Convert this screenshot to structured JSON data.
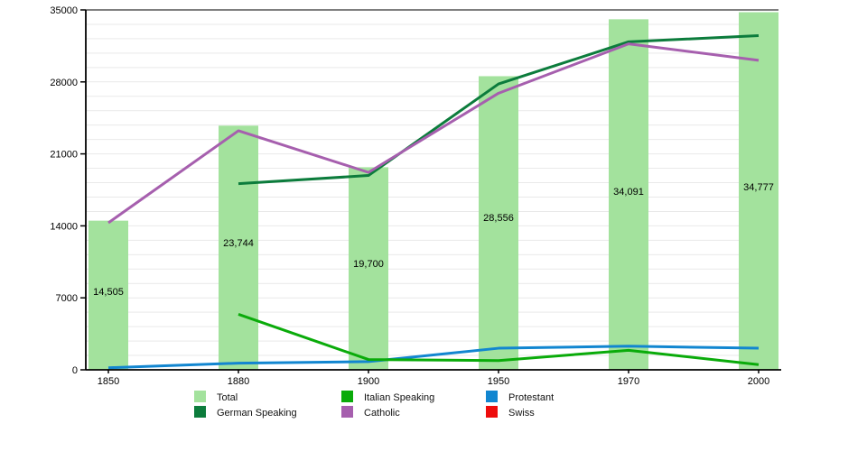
{
  "chart_data": {
    "type": "bar+line",
    "title": "",
    "xlabel": "",
    "ylabel": "",
    "categories": [
      "1850",
      "1880",
      "1900",
      "1950",
      "1970",
      "2000"
    ],
    "bar_series": {
      "name": "Total",
      "color": "#a3e29d",
      "values": [
        14505,
        23744,
        19700,
        28556,
        34091,
        34777
      ],
      "labels": [
        "14,505",
        "23,744",
        "19,700",
        "28,556",
        "34,091",
        "34,777"
      ]
    },
    "line_series": [
      {
        "name": "Protestant",
        "color": "#1286d0",
        "values": [
          200,
          650,
          800,
          2100,
          2300,
          2100
        ]
      },
      {
        "name": "Italian Speaking",
        "color": "#0aab0a",
        "values": [
          null,
          5400,
          1000,
          900,
          1900,
          500
        ]
      },
      {
        "name": "German Speaking",
        "color": "#0c7c3c",
        "values": [
          null,
          18100,
          18900,
          27800,
          31900,
          32500
        ]
      },
      {
        "name": "Catholic",
        "color": "#a65fae",
        "values": [
          14300,
          23250,
          19200,
          26900,
          31700,
          30100
        ]
      },
      {
        "name": "Swiss",
        "color": "#ee0c0c",
        "values": [
          null,
          null,
          null,
          null,
          null,
          null
        ]
      }
    ],
    "ylim": [
      0,
      35000
    ],
    "yticks": [
      0,
      7000,
      14000,
      21000,
      28000,
      35000
    ],
    "ytick_labels": [
      "0",
      "7000",
      "14000",
      "21000",
      "28000",
      "35000"
    ],
    "grid": "light horizontal minor gridlines every 1400, on",
    "legend_position": "bottom",
    "legend_items": [
      {
        "label": "Total",
        "color": "#a3e29d",
        "col": 0,
        "row": 0
      },
      {
        "label": "German Speaking",
        "color": "#0c7c3c",
        "col": 0,
        "row": 1
      },
      {
        "label": "Italian Speaking",
        "color": "#0aab0a",
        "col": 1,
        "row": 0
      },
      {
        "label": "Catholic",
        "color": "#a65fae",
        "col": 1,
        "row": 1
      },
      {
        "label": "Protestant",
        "color": "#1286d0",
        "col": 2,
        "row": 0
      },
      {
        "label": "Swiss",
        "color": "#ee0c0c",
        "col": 2,
        "row": 1
      }
    ]
  }
}
